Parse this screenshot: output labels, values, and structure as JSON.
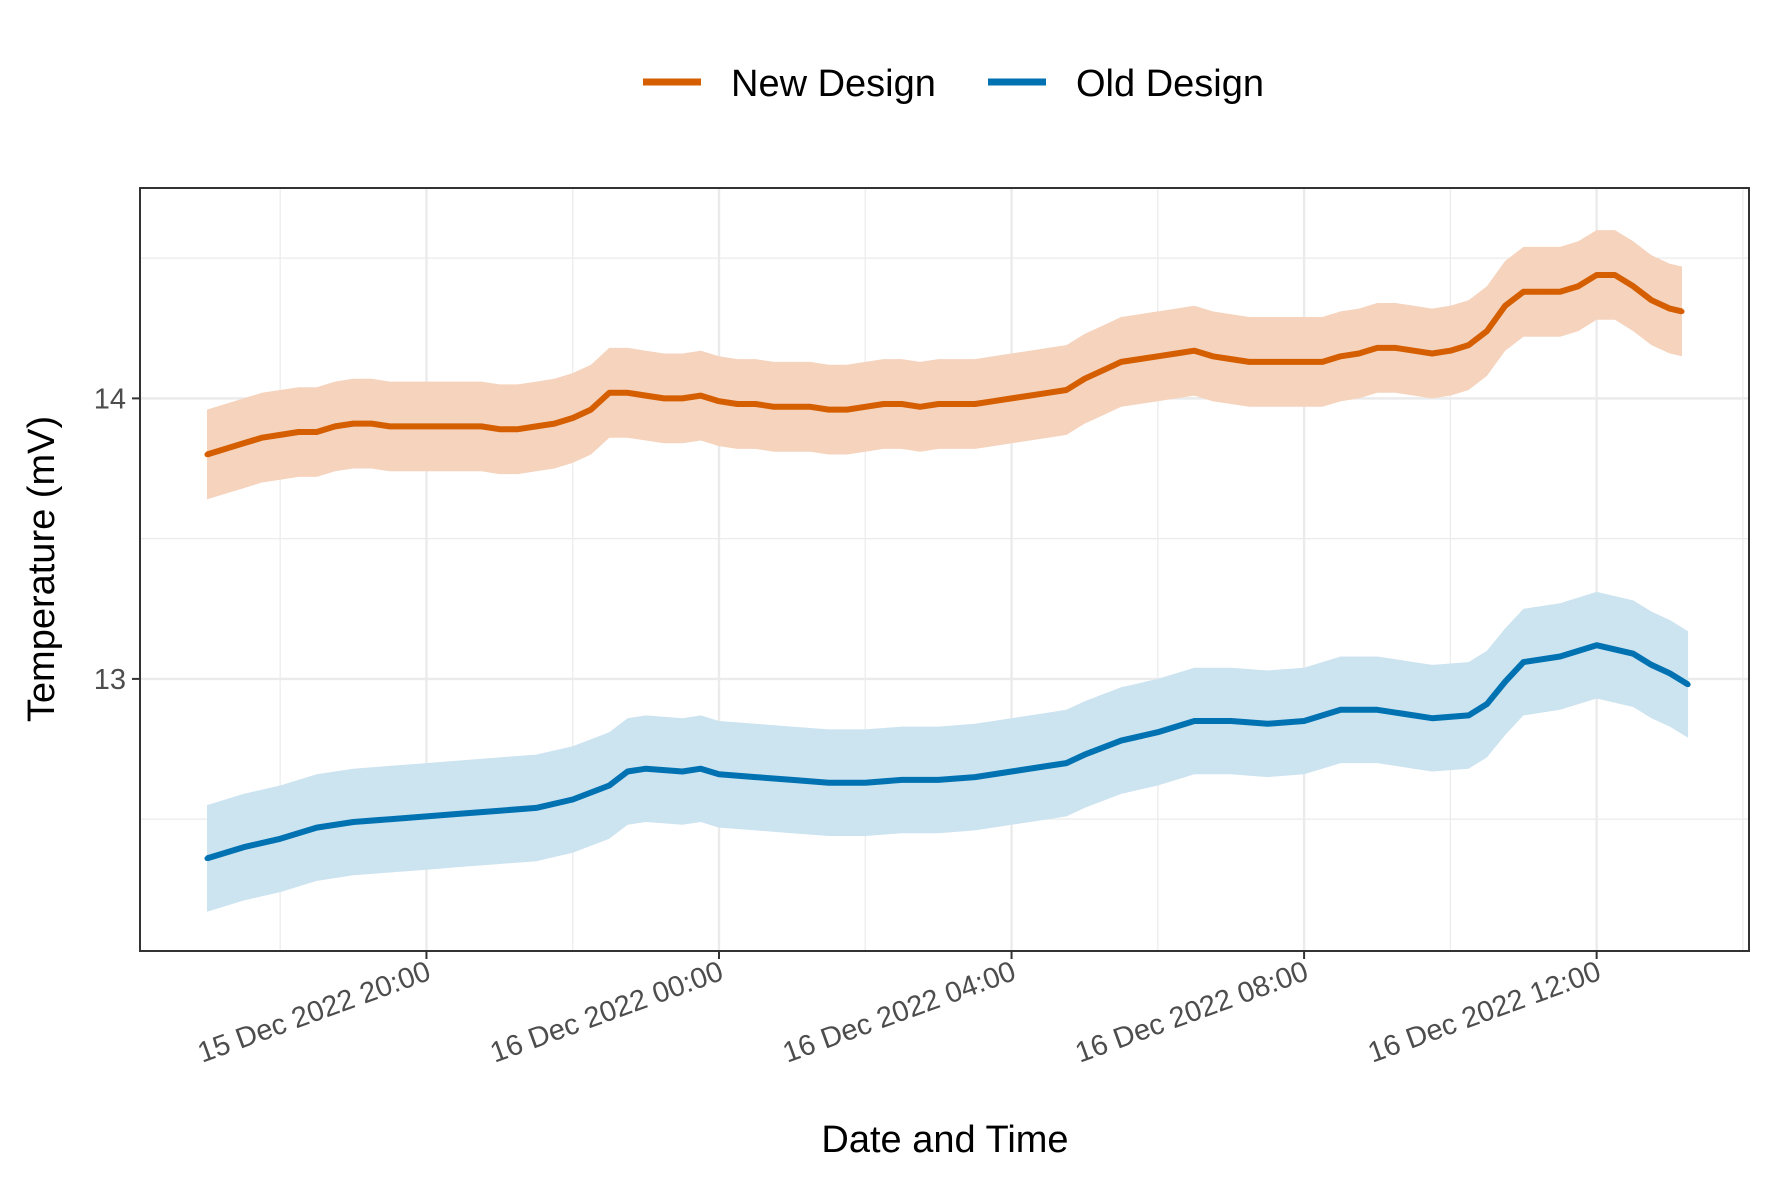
{
  "chart_data": {
    "type": "line",
    "xlabel": "Date and Time",
    "ylabel": "Temperature (mV)",
    "x_ticks": [
      {
        "t": "2022-12-15T20:00",
        "label": "15 Dec 2022 20:00"
      },
      {
        "t": "2022-12-16T00:00",
        "label": "16 Dec 2022 00:00"
      },
      {
        "t": "2022-12-16T04:00",
        "label": "16 Dec 2022 04:00"
      },
      {
        "t": "2022-12-16T08:00",
        "label": "16 Dec 2022 08:00"
      },
      {
        "t": "2022-12-16T12:00",
        "label": "16 Dec 2022 12:00"
      }
    ],
    "y_ticks": [
      13,
      14
    ],
    "xlim": [
      "2022-12-15T16:05",
      "2022-12-16T14:05"
    ],
    "ylim": [
      12.03,
      14.75
    ],
    "grid": true,
    "legend_position": "top",
    "series": [
      {
        "name": "New Design",
        "color": "#D55E00",
        "ribbon_color": "#F5D3BD",
        "ribbon_halfwidth": 0.16,
        "points": [
          [
            "2022-12-15T17:00",
            13.8
          ],
          [
            "2022-12-15T17:15",
            13.82
          ],
          [
            "2022-12-15T17:30",
            13.84
          ],
          [
            "2022-12-15T17:45",
            13.86
          ],
          [
            "2022-12-15T18:00",
            13.87
          ],
          [
            "2022-12-15T18:15",
            13.88
          ],
          [
            "2022-12-15T18:30",
            13.88
          ],
          [
            "2022-12-15T18:45",
            13.9
          ],
          [
            "2022-12-15T19:00",
            13.91
          ],
          [
            "2022-12-15T19:15",
            13.91
          ],
          [
            "2022-12-15T19:30",
            13.9
          ],
          [
            "2022-12-15T19:45",
            13.9
          ],
          [
            "2022-12-15T20:00",
            13.9
          ],
          [
            "2022-12-15T20:15",
            13.9
          ],
          [
            "2022-12-15T20:30",
            13.9
          ],
          [
            "2022-12-15T20:45",
            13.9
          ],
          [
            "2022-12-15T21:00",
            13.89
          ],
          [
            "2022-12-15T21:15",
            13.89
          ],
          [
            "2022-12-15T21:30",
            13.9
          ],
          [
            "2022-12-15T21:45",
            13.91
          ],
          [
            "2022-12-15T22:00",
            13.93
          ],
          [
            "2022-12-15T22:15",
            13.96
          ],
          [
            "2022-12-15T22:30",
            14.02
          ],
          [
            "2022-12-15T22:45",
            14.02
          ],
          [
            "2022-12-15T23:00",
            14.01
          ],
          [
            "2022-12-15T23:15",
            14.0
          ],
          [
            "2022-12-15T23:30",
            14.0
          ],
          [
            "2022-12-15T23:45",
            14.01
          ],
          [
            "2022-12-16T00:00",
            13.99
          ],
          [
            "2022-12-16T00:15",
            13.98
          ],
          [
            "2022-12-16T00:30",
            13.98
          ],
          [
            "2022-12-16T00:45",
            13.97
          ],
          [
            "2022-12-16T01:00",
            13.97
          ],
          [
            "2022-12-16T01:15",
            13.97
          ],
          [
            "2022-12-16T01:30",
            13.96
          ],
          [
            "2022-12-16T01:45",
            13.96
          ],
          [
            "2022-12-16T02:00",
            13.97
          ],
          [
            "2022-12-16T02:15",
            13.98
          ],
          [
            "2022-12-16T02:30",
            13.98
          ],
          [
            "2022-12-16T02:45",
            13.97
          ],
          [
            "2022-12-16T03:00",
            13.98
          ],
          [
            "2022-12-16T03:15",
            13.98
          ],
          [
            "2022-12-16T03:30",
            13.98
          ],
          [
            "2022-12-16T03:45",
            13.99
          ],
          [
            "2022-12-16T04:00",
            14.0
          ],
          [
            "2022-12-16T04:15",
            14.01
          ],
          [
            "2022-12-16T04:30",
            14.02
          ],
          [
            "2022-12-16T04:45",
            14.03
          ],
          [
            "2022-12-16T05:00",
            14.07
          ],
          [
            "2022-12-16T05:15",
            14.1
          ],
          [
            "2022-12-16T05:30",
            14.13
          ],
          [
            "2022-12-16T05:45",
            14.14
          ],
          [
            "2022-12-16T06:00",
            14.15
          ],
          [
            "2022-12-16T06:15",
            14.16
          ],
          [
            "2022-12-16T06:30",
            14.17
          ],
          [
            "2022-12-16T06:45",
            14.15
          ],
          [
            "2022-12-16T07:00",
            14.14
          ],
          [
            "2022-12-16T07:15",
            14.13
          ],
          [
            "2022-12-16T07:30",
            14.13
          ],
          [
            "2022-12-16T07:45",
            14.13
          ],
          [
            "2022-12-16T08:00",
            14.13
          ],
          [
            "2022-12-16T08:15",
            14.13
          ],
          [
            "2022-12-16T08:30",
            14.15
          ],
          [
            "2022-12-16T08:45",
            14.16
          ],
          [
            "2022-12-16T09:00",
            14.18
          ],
          [
            "2022-12-16T09:15",
            14.18
          ],
          [
            "2022-12-16T09:30",
            14.17
          ],
          [
            "2022-12-16T09:45",
            14.16
          ],
          [
            "2022-12-16T10:00",
            14.17
          ],
          [
            "2022-12-16T10:15",
            14.19
          ],
          [
            "2022-12-16T10:30",
            14.24
          ],
          [
            "2022-12-16T10:45",
            14.33
          ],
          [
            "2022-12-16T11:00",
            14.38
          ],
          [
            "2022-12-16T11:15",
            14.38
          ],
          [
            "2022-12-16T11:30",
            14.38
          ],
          [
            "2022-12-16T11:45",
            14.4
          ],
          [
            "2022-12-16T12:00",
            14.44
          ],
          [
            "2022-12-16T12:15",
            14.44
          ],
          [
            "2022-12-16T12:30",
            14.4
          ],
          [
            "2022-12-16T12:45",
            14.35
          ],
          [
            "2022-12-16T13:00",
            14.32
          ],
          [
            "2022-12-16T13:10",
            14.31
          ]
        ]
      },
      {
        "name": "Old Design",
        "color": "#0072B2",
        "ribbon_color": "#CCE3F0",
        "ribbon_halfwidth": 0.19,
        "points": [
          [
            "2022-12-15T17:00",
            12.36
          ],
          [
            "2022-12-15T17:30",
            12.4
          ],
          [
            "2022-12-15T18:00",
            12.43
          ],
          [
            "2022-12-15T18:30",
            12.47
          ],
          [
            "2022-12-15T19:00",
            12.49
          ],
          [
            "2022-12-15T19:30",
            12.5
          ],
          [
            "2022-12-15T20:00",
            12.51
          ],
          [
            "2022-12-15T20:30",
            12.52
          ],
          [
            "2022-12-15T21:00",
            12.53
          ],
          [
            "2022-12-15T21:30",
            12.54
          ],
          [
            "2022-12-15T22:00",
            12.57
          ],
          [
            "2022-12-15T22:30",
            12.62
          ],
          [
            "2022-12-15T22:45",
            12.67
          ],
          [
            "2022-12-15T23:00",
            12.68
          ],
          [
            "2022-12-15T23:30",
            12.67
          ],
          [
            "2022-12-15T23:45",
            12.68
          ],
          [
            "2022-12-16T00:00",
            12.66
          ],
          [
            "2022-12-16T00:30",
            12.65
          ],
          [
            "2022-12-16T01:00",
            12.64
          ],
          [
            "2022-12-16T01:30",
            12.63
          ],
          [
            "2022-12-16T02:00",
            12.63
          ],
          [
            "2022-12-16T02:30",
            12.64
          ],
          [
            "2022-12-16T03:00",
            12.64
          ],
          [
            "2022-12-16T03:30",
            12.65
          ],
          [
            "2022-12-16T04:00",
            12.67
          ],
          [
            "2022-12-16T04:30",
            12.69
          ],
          [
            "2022-12-16T04:45",
            12.7
          ],
          [
            "2022-12-16T05:00",
            12.73
          ],
          [
            "2022-12-16T05:30",
            12.78
          ],
          [
            "2022-12-16T06:00",
            12.81
          ],
          [
            "2022-12-16T06:30",
            12.85
          ],
          [
            "2022-12-16T07:00",
            12.85
          ],
          [
            "2022-12-16T07:30",
            12.84
          ],
          [
            "2022-12-16T08:00",
            12.85
          ],
          [
            "2022-12-16T08:30",
            12.89
          ],
          [
            "2022-12-16T09:00",
            12.89
          ],
          [
            "2022-12-16T09:30",
            12.87
          ],
          [
            "2022-12-16T09:45",
            12.86
          ],
          [
            "2022-12-16T10:15",
            12.87
          ],
          [
            "2022-12-16T10:30",
            12.91
          ],
          [
            "2022-12-16T10:45",
            12.99
          ],
          [
            "2022-12-16T11:00",
            13.06
          ],
          [
            "2022-12-16T11:30",
            13.08
          ],
          [
            "2022-12-16T12:00",
            13.12
          ],
          [
            "2022-12-16T12:30",
            13.09
          ],
          [
            "2022-12-16T12:45",
            13.05
          ],
          [
            "2022-12-16T13:00",
            13.02
          ],
          [
            "2022-12-16T13:15",
            12.98
          ]
        ]
      }
    ]
  }
}
